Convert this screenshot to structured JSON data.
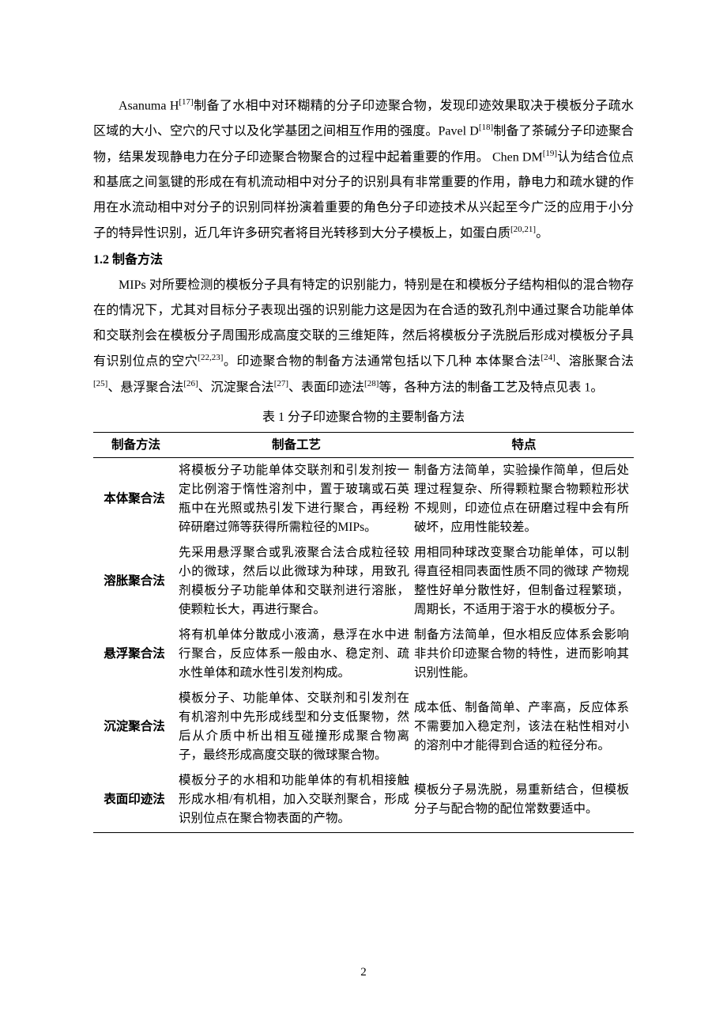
{
  "paragraphs": {
    "p1_part1": "Asanuma H",
    "p1_sup1": "[17]",
    "p1_part2": "制备了水相中对环糊精的分子印迹聚合物，发现印迹效果取决于模板分子疏水区域的大小、空穴的尺寸以及化学基团之间相互作用的强度。Pavel D",
    "p1_sup2": "[18]",
    "p1_part3": "制备了茶碱分子印迹聚合物，结果发现静电力在分子印迹聚合物聚合的过程中起着重要的作用。 Chen DM",
    "p1_sup3": "[19]",
    "p1_part4": "认为结合位点和基底之间氢键的形成在有机流动相中对分子的识别具有非常重要的作用，静电力和疏水键的作用在水流动相中对分子的识别同样扮演着重要的角色分子印迹技术从兴起至今广泛的应用于小分子的特异性识别，近几年许多研究者将目光转移到大分子模板上，如蛋白质",
    "p1_sup4": "[20,21]",
    "p1_part5": "。"
  },
  "heading": "1.2 制备方法",
  "paragraph2": {
    "part1": "MIPs 对所要检测的模板分子具有特定的识别能力，特别是在和模板分子结构相似的混合物存在的情况下，尤其对目标分子表现出强的识别能力这是因为在合适的致孔剂中通过聚合功能单体和交联剂会在模板分子周围形成高度交联的三维矩阵，然后将模板分子洗脱后形成对模板分子具有识别位点的空穴",
    "sup1": "[22,23]",
    "part2": "。印迹聚合物的制备方法通常包括以下几种 本体聚合法",
    "sup2": "[24]",
    "part3": "、溶胀聚合法",
    "sup3": "[25]",
    "part4": "、悬浮聚合法",
    "sup4": "[26]",
    "part5": "、沉淀聚合法",
    "sup5": "[27]",
    "part6": "、表面印迹法",
    "sup6": "[28]",
    "part7": "等，各种方法的制备工艺及特点见表 1。"
  },
  "table": {
    "title": "表 1  分子印迹聚合物的主要制备方法",
    "headers": {
      "method": "制备方法",
      "process": "制备工艺",
      "feature": "特点"
    },
    "rows": [
      {
        "method": "本体聚合法",
        "process": "将模板分子功能单体交联剂和引发剂按一定比例溶于惰性溶剂中，置于玻璃或石英瓶中在光照或热引发下进行聚合，再经粉碎研磨过筛等获得所需粒径的MIPs。",
        "feature": "制备方法简单，实验操作简单，但后处理过程复杂、所得颗粒聚合物颗粒形状不规则，印迹位点在研磨过程中会有所破坏，应用性能较差。"
      },
      {
        "method": "溶胀聚合法",
        "process": "先采用悬浮聚合或乳液聚合法合成粒径较小的微球，然后以此微球为种球，用致孔剂模板分子功能单体和交联剂进行溶胀，使颗粒长大，再进行聚合。",
        "feature": "用相同种球改变聚合功能单体，可以制得直径相同表面性质不同的微球 产物规整性好单分散性好，但制备过程繁琐，周期长，不适用于溶于水的模板分子。"
      },
      {
        "method": "悬浮聚合法",
        "process": "将有机单体分散成小液滴，悬浮在水中进行聚合，反应体系一般由水、稳定剂、疏水性单体和疏水性引发剂构成。",
        "feature": "制备方法简单，但水相反应体系会影响非共价印迹聚合物的特性，进而影响其识别性能。"
      },
      {
        "method": "沉淀聚合法",
        "process": "模板分子、功能单体、交联剂和引发剂在有机溶剂中先形成线型和分支低聚物，然后从介质中析出相互碰撞形成聚合物离子，最终形成高度交联的微球聚合物。",
        "feature": "成本低、制备简单、产率高，反应体系不需要加入稳定剂，该法在粘性相对小的溶剂中才能得到合适的粒径分布。"
      },
      {
        "method": "表面印迹法",
        "process": "模板分子的水相和功能单体的有机相接触形成水相/有机相，加入交联剂聚合，形成识别位点在聚合物表面的产物。",
        "feature": "模板分子易洗脱，易重新结合，但模板分子与配合物的配位常数要适中。"
      }
    ]
  },
  "page_number": "2",
  "styles": {
    "body_font_size": 16,
    "line_height": 2.0,
    "text_color": "#000000",
    "background": "#ffffff",
    "table_font_size": 15.5,
    "table_border_color": "#000000",
    "table_top_border_width": 1.4,
    "table_header_border_width": 1.0
  }
}
